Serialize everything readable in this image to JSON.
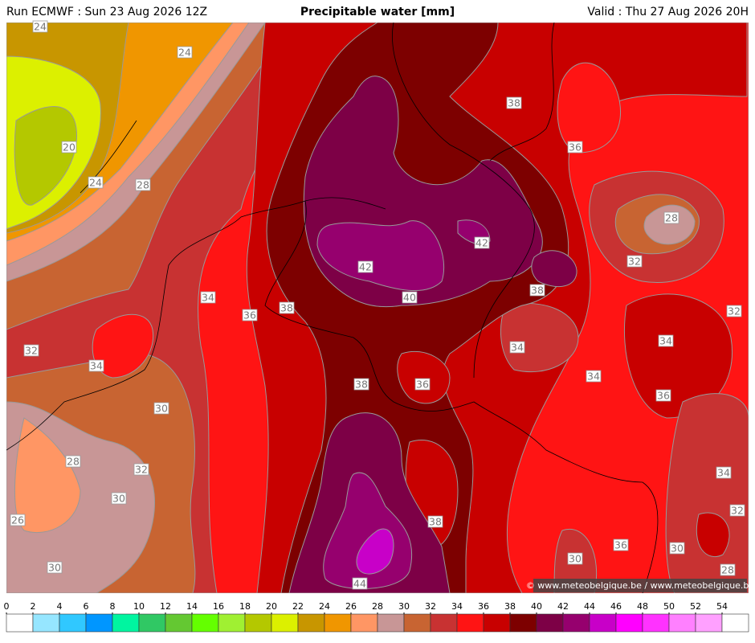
{
  "header": {
    "run": "Run ECMWF : Sun 23 Aug 2026 12Z",
    "title": "Precipitable water [mm]",
    "valid": "Valid : Thu 27 Aug 2026 20H"
  },
  "map": {
    "contour_labels": [
      24,
      24,
      20,
      24,
      28,
      38,
      36,
      28,
      42,
      32,
      42,
      38,
      40,
      34,
      38,
      36,
      32,
      32,
      34,
      34,
      34,
      34,
      38,
      36,
      36,
      30,
      28,
      32,
      34,
      30,
      32,
      38,
      26,
      36,
      30,
      30,
      30,
      28,
      44
    ],
    "copyright": "© www.meteobelgique.be / www.meteobelgique.be"
  },
  "colorbar": {
    "ticks": [
      0,
      2,
      4,
      6,
      8,
      10,
      12,
      14,
      16,
      18,
      20,
      22,
      24,
      26,
      28,
      30,
      32,
      34,
      36,
      38,
      40,
      42,
      44,
      46,
      48,
      50,
      52,
      54
    ],
    "colors": [
      "#ffffff",
      "#96e6ff",
      "#30c8ff",
      "#0096ff",
      "#00f5a0",
      "#30c864",
      "#64c832",
      "#64ff00",
      "#a0f032",
      "#b4c800",
      "#dcf000",
      "#c89600",
      "#f09600",
      "#ff9664",
      "#c89696",
      "#c86432",
      "#c83232",
      "#ff1414",
      "#c80000",
      "#7d0000",
      "#7d0046",
      "#96006e",
      "#c800c8",
      "#ff00ff",
      "#ff32ff",
      "#ff80ff",
      "#ffa0ff",
      "#ffffff"
    ]
  }
}
